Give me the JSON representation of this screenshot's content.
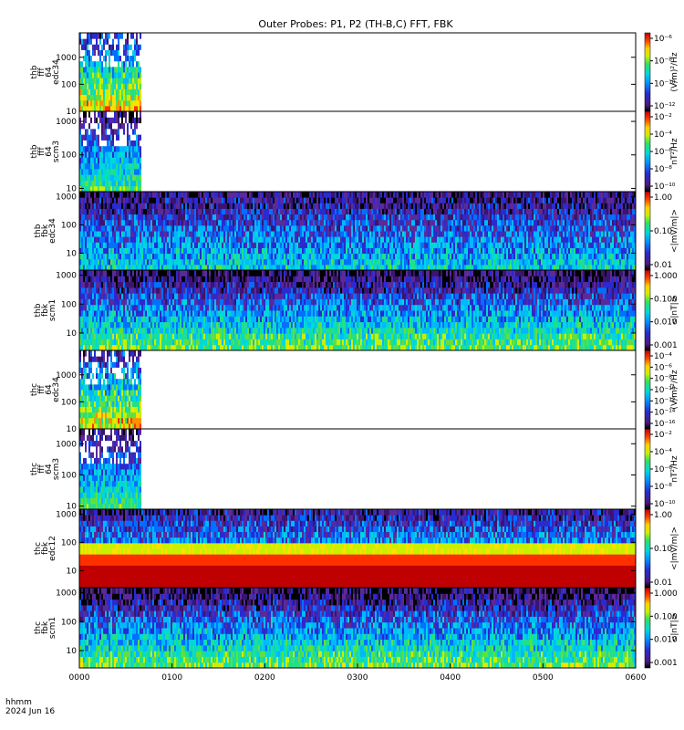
{
  "chart_data": {
    "type": "heatmap",
    "title": "Outer Probes: P1, P2 (TH-B,C) FFT, FBK",
    "footer": {
      "line1": "hhmm",
      "line2": "2024 Jun 16"
    },
    "x_ticks": [
      "0000",
      "0100",
      "0200",
      "0300",
      "0400",
      "0500",
      "0600"
    ],
    "x_range_minutes": [
      0,
      360
    ],
    "panels": [
      {
        "ylabel": [
          "thb",
          "fff",
          "64",
          "edc34"
        ],
        "yticks": [
          "10",
          "100",
          "1000"
        ],
        "yrange": [
          10,
          8000
        ],
        "cbar_label": "(V/m)²/Hz",
        "cbar_ticks": [
          "10⁻¹²",
          "10⁻¹⁰",
          "10⁻⁸",
          "10⁻⁶"
        ],
        "data_end_minutes": 40,
        "kind": "fff_e"
      },
      {
        "ylabel": [
          "thb",
          "fff",
          "64",
          "scm3"
        ],
        "yticks": [
          "10",
          "100",
          "1000"
        ],
        "yrange": [
          8,
          2000
        ],
        "cbar_label": "nT²/Hz",
        "cbar_ticks": [
          "10⁻¹⁰",
          "10⁻⁸",
          "10⁻⁶",
          "10⁻⁴",
          "10⁻²"
        ],
        "data_end_minutes": 40,
        "kind": "fff_b"
      },
      {
        "ylabel": [
          "thb",
          "fbk",
          "edc34"
        ],
        "yticks": [
          "10",
          "100",
          "1000"
        ],
        "yrange": [
          2.5,
          1500
        ],
        "cbar_label": "<|mV/m|>",
        "cbar_ticks": [
          "0.01",
          "0.10",
          "1.00"
        ],
        "data_end_minutes": 360,
        "kind": "fbk_e"
      },
      {
        "ylabel": [
          "thb",
          "fbk",
          "scm1"
        ],
        "yticks": [
          "10",
          "100",
          "1000"
        ],
        "yrange": [
          2.5,
          1500
        ],
        "cbar_label": "<|nT|>",
        "cbar_ticks": [
          "0.001",
          "0.010",
          "0.100",
          "1.000"
        ],
        "data_end_minutes": 360,
        "kind": "fbk_b"
      },
      {
        "ylabel": [
          "thc",
          "fff",
          "64",
          "edc34"
        ],
        "yticks": [
          "10",
          "100",
          "1000"
        ],
        "yrange": [
          10,
          8000
        ],
        "cbar_label": "(V/m)²/Hz",
        "cbar_ticks": [
          "10⁻¹⁶",
          "10⁻¹⁴",
          "10⁻¹²",
          "10⁻¹⁰",
          "10⁻⁸",
          "10⁻⁶",
          "10⁻⁴"
        ],
        "data_end_minutes": 40,
        "kind": "fff_e"
      },
      {
        "ylabel": [
          "thc",
          "fff",
          "64",
          "scm3"
        ],
        "yticks": [
          "10",
          "100",
          "1000"
        ],
        "yrange": [
          8,
          3000
        ],
        "cbar_label": "nT²/Hz",
        "cbar_ticks": [
          "10⁻¹⁰",
          "10⁻⁸",
          "10⁻⁶",
          "10⁻⁴",
          "10⁻²"
        ],
        "data_end_minutes": 40,
        "kind": "fff_b"
      },
      {
        "ylabel": [
          "thc",
          "fbk",
          "edc12"
        ],
        "yticks": [
          "10",
          "100",
          "1000"
        ],
        "yrange": [
          2.5,
          1500
        ],
        "cbar_label": "<|mV/m|>",
        "cbar_ticks": [
          "0.01",
          "0.10",
          "1.00"
        ],
        "data_end_minutes": 360,
        "kind": "fbk_e_strong"
      },
      {
        "ylabel": [
          "thc",
          "fbk",
          "scm1"
        ],
        "yticks": [
          "10",
          "100",
          "1000"
        ],
        "yrange": [
          2.5,
          1500
        ],
        "cbar_label": "<|nT|>",
        "cbar_ticks": [
          "0.001",
          "0.010",
          "0.100",
          "1.000"
        ],
        "data_end_minutes": 360,
        "kind": "fbk_b"
      }
    ]
  }
}
